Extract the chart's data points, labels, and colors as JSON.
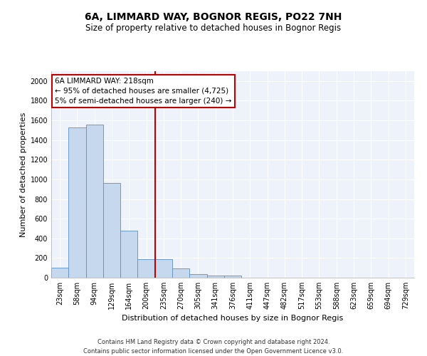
{
  "title": "6A, LIMMARD WAY, BOGNOR REGIS, PO22 7NH",
  "subtitle": "Size of property relative to detached houses in Bognor Regis",
  "xlabel": "Distribution of detached houses by size in Bognor Regis",
  "ylabel": "Number of detached properties",
  "categories": [
    "23sqm",
    "58sqm",
    "94sqm",
    "129sqm",
    "164sqm",
    "200sqm",
    "235sqm",
    "270sqm",
    "305sqm",
    "341sqm",
    "376sqm",
    "411sqm",
    "447sqm",
    "482sqm",
    "517sqm",
    "553sqm",
    "588sqm",
    "623sqm",
    "659sqm",
    "694sqm",
    "729sqm"
  ],
  "values": [
    100,
    1525,
    1560,
    960,
    475,
    185,
    185,
    95,
    35,
    25,
    20,
    0,
    0,
    0,
    0,
    0,
    0,
    0,
    0,
    0,
    0
  ],
  "bar_color": "#c5d8ee",
  "bar_edge_color": "#5b8fc9",
  "vline_x_idx": 6,
  "vline_color": "#c00000",
  "annotation_text_line1": "6A LIMMARD WAY: 218sqm",
  "annotation_text_line2": "← 95% of detached houses are smaller (4,725)",
  "annotation_text_line3": "5% of semi-detached houses are larger (240) →",
  "box_color": "#c00000",
  "ylim": [
    0,
    2100
  ],
  "yticks": [
    0,
    200,
    400,
    600,
    800,
    1000,
    1200,
    1400,
    1600,
    1800,
    2000
  ],
  "footer": "Contains HM Land Registry data © Crown copyright and database right 2024.\nContains public sector information licensed under the Open Government Licence v3.0.",
  "bg_color": "#eef2fa",
  "grid_color": "#ffffff",
  "title_fontsize": 10,
  "subtitle_fontsize": 8.5,
  "axis_label_fontsize": 8,
  "tick_fontsize": 7,
  "footer_fontsize": 6,
  "annotation_fontsize": 7.5
}
